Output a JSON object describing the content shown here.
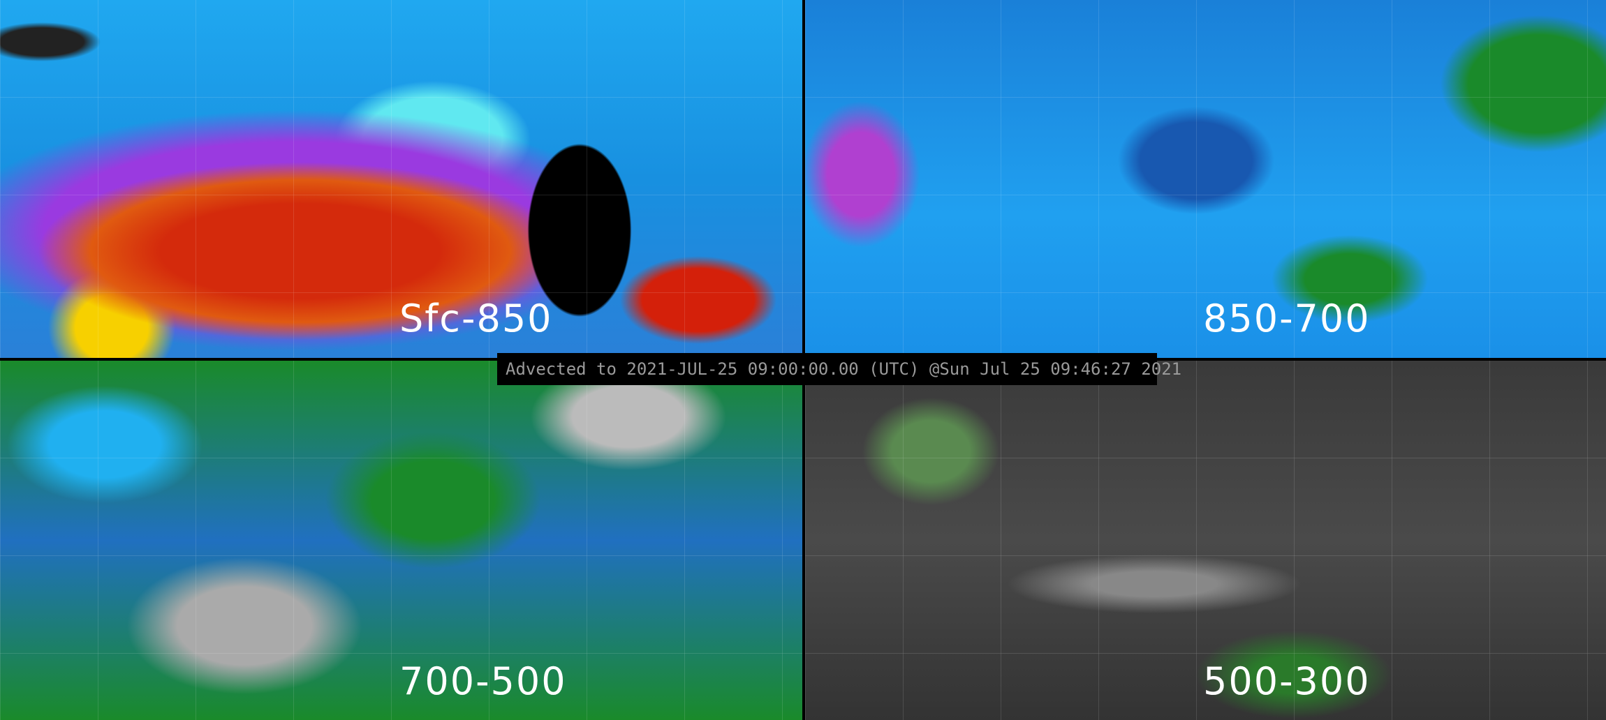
{
  "panels": [
    {
      "label": "Sfc-850"
    },
    {
      "label": "850-700"
    },
    {
      "label": "700-500"
    },
    {
      "label": "500-300"
    }
  ],
  "banner": "Advected to 2021-JUL-25 09:00:00.00 (UTC) @Sun Jul 25 09:46:27 2021"
}
